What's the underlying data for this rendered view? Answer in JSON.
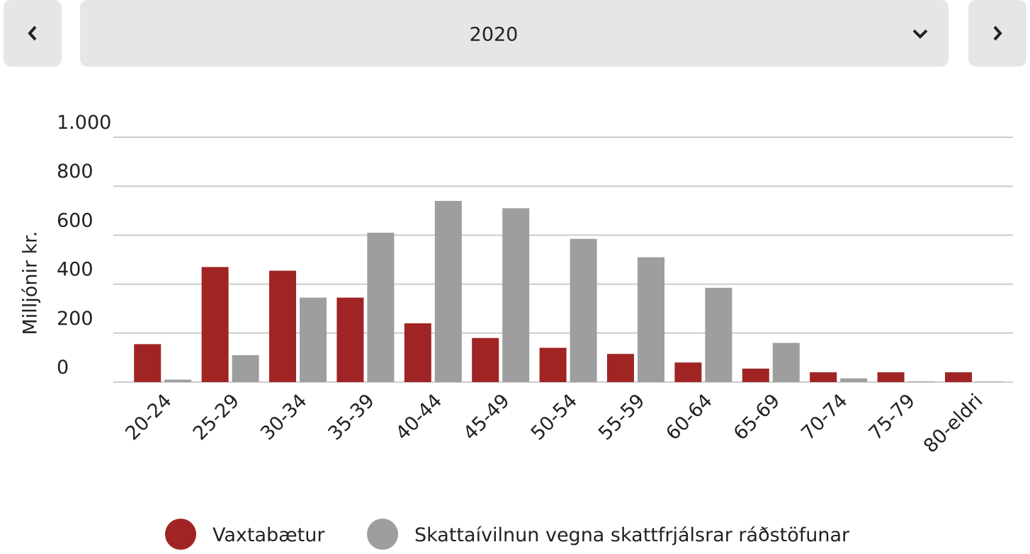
{
  "year_selector": {
    "value": "2020"
  },
  "chart_data": {
    "type": "bar",
    "y_axis_label": "Milljónir kr.",
    "categories": [
      "20-24",
      "25-29",
      "30-34",
      "35-39",
      "40-44",
      "45-49",
      "50-54",
      "55-59",
      "60-64",
      "65-69",
      "70-74",
      "75-79",
      "80-eldri"
    ],
    "series": [
      {
        "name": "Vaxtabætur",
        "color": "#a02424",
        "values": [
          155,
          470,
          455,
          345,
          240,
          180,
          140,
          115,
          80,
          55,
          40,
          40,
          40
        ]
      },
      {
        "name": "Skattaívilnun vegna skattfrjálsrar ráðstöfunar",
        "color": "#9e9e9e",
        "values": [
          10,
          110,
          345,
          610,
          740,
          710,
          585,
          510,
          385,
          160,
          15,
          3,
          2
        ]
      }
    ],
    "ylim": [
      0,
      1000
    ],
    "yticks": [
      0,
      200,
      400,
      600,
      800,
      {
        "value": 1000,
        "label": "1.000"
      }
    ],
    "grid": true
  }
}
